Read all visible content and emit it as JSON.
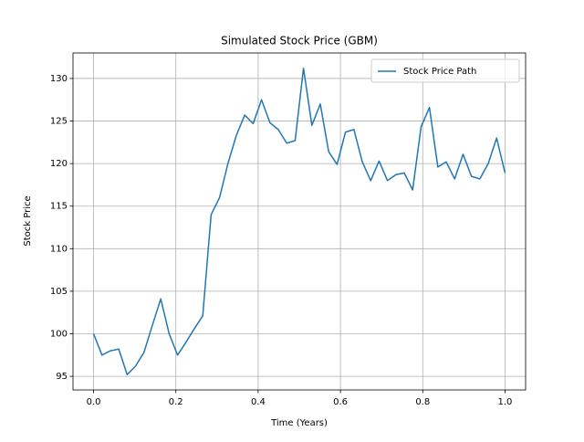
{
  "chart_data": {
    "type": "line",
    "title": "Simulated Stock Price (GBM)",
    "xlabel": "Time (Years)",
    "ylabel": "Stock Price",
    "x": [
      0,
      0.0204,
      0.0408,
      0.0612,
      0.0816,
      0.102,
      0.1224,
      0.1429,
      0.1633,
      0.1837,
      0.2041,
      0.2245,
      0.2449,
      0.2653,
      0.2857,
      0.3061,
      0.3265,
      0.3469,
      0.3673,
      0.3878,
      0.4082,
      0.4286,
      0.449,
      0.4694,
      0.4898,
      0.5102,
      0.5306,
      0.551,
      0.5714,
      0.5918,
      0.6122,
      0.6327,
      0.6531,
      0.6735,
      0.6939,
      0.7143,
      0.7347,
      0.7551,
      0.7755,
      0.7959,
      0.8163,
      0.8367,
      0.8571,
      0.8776,
      0.898,
      0.9184,
      0.9388,
      0.9592,
      0.9796,
      1.0
    ],
    "series": [
      {
        "name": "Stock Price Path",
        "color": "#1f77b4",
        "values": [
          100.0,
          97.5,
          98.0,
          98.2,
          95.2,
          96.2,
          97.8,
          101.0,
          104.1,
          100.0,
          97.5,
          99.0,
          100.6,
          102.1,
          114.0,
          116.0,
          120.0,
          123.3,
          125.7,
          124.7,
          127.5,
          124.8,
          124.0,
          122.4,
          122.7,
          131.2,
          124.5,
          127.0,
          121.4,
          119.9,
          123.7,
          124.0,
          120.2,
          118.0,
          120.3,
          118.0,
          118.7,
          118.9,
          116.9,
          124.3,
          126.6,
          119.6,
          120.2,
          118.2,
          121.1,
          118.5,
          118.2,
          120.0,
          123.0,
          118.9
        ]
      }
    ],
    "xlim": [
      -0.05,
      1.05
    ],
    "xticks": [
      {
        "value": 0,
        "label": "0.0"
      },
      0.2,
      0.4,
      0.6,
      0.8,
      {
        "value": 1,
        "label": "1.0"
      }
    ],
    "ylim": [
      93.4,
      133.0
    ],
    "yticks": [
      95,
      100,
      105,
      110,
      115,
      120,
      125,
      130
    ],
    "grid": true,
    "legend": "upper right"
  }
}
